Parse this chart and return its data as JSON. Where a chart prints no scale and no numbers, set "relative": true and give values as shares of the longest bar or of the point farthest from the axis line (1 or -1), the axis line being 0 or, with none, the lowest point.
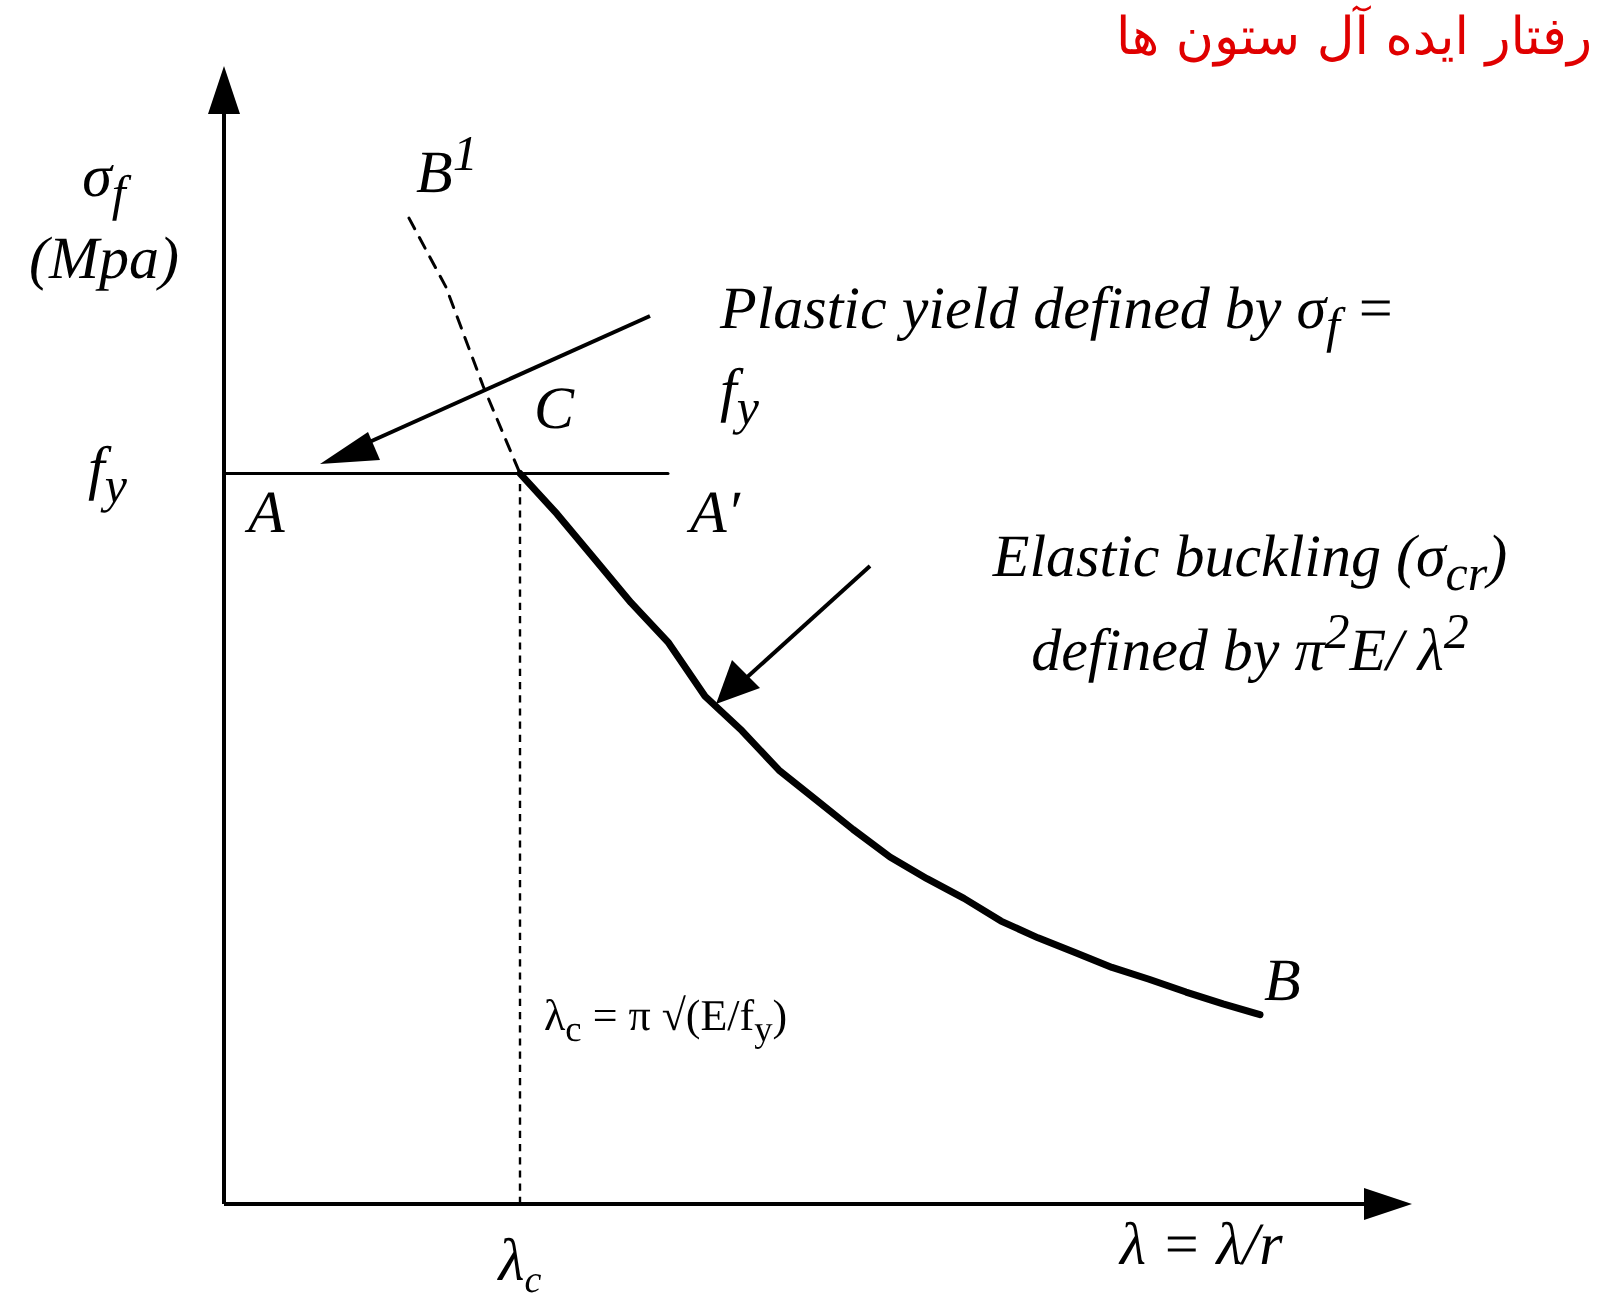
{
  "chart_data": {
    "type": "line",
    "title": "رفتار ایده آل ستون ها",
    "xlabel": "λ = λ/r",
    "ylabel": "σ$_{f}$ (Mpa)",
    "relative": true,
    "marker": "none",
    "categories": [
      null,
      null,
      null,
      null,
      null,
      null,
      null,
      null,
      null,
      null,
      null,
      null,
      null,
      null,
      null,
      null,
      null,
      null,
      null,
      null,
      null,
      null,
      null,
      null,
      null,
      null,
      null,
      null,
      null,
      null,
      null,
      null
    ],
    "series": [
      {
        "color": "#000000",
        "line_style": "dashed",
        "values": [
          null,
          null,
          null,
          null,
          null,
          1,
          0.93,
          0.83,
          0.741,
          null,
          null,
          null,
          null,
          null,
          null,
          null,
          null,
          null,
          null,
          null,
          null,
          null,
          null,
          null,
          null,
          null,
          null,
          null,
          null,
          null,
          null,
          null
        ]
      },
      {
        "color": "#000000",
        "line_style": "solid",
        "values": [
          null,
          null,
          null,
          null,
          null,
          null,
          null,
          null,
          0.741,
          0.7,
          0.655,
          0.61,
          0.57,
          0.515,
          0.48,
          0.44,
          0.41,
          0.38,
          0.352,
          0.33,
          0.31,
          0.287,
          0.27,
          0.255,
          0.24,
          0.228,
          0.215,
          0.203,
          0.192,
          null,
          null,
          null
        ]
      },
      {
        "color": "#000000",
        "line_style": "solid",
        "values": [
          0.741,
          0.741,
          0.741,
          0.741,
          0.741,
          0.741,
          0.741,
          0.741,
          0.741,
          0.741,
          0.741,
          0.741,
          0.741,
          null,
          null,
          null,
          null,
          null,
          null,
          null,
          null,
          null,
          null,
          null,
          null,
          null,
          null,
          null,
          null,
          null,
          null,
          null
        ]
      }
    ],
    "ref_lines": [
      {
        "axis": "x",
        "label": "λ$_{c}$",
        "line_style": "dashed",
        "color": "#000000"
      }
    ],
    "annotations": [
      "A",
      "A′",
      "C",
      "B$^{1}$",
      "B",
      "f$_{y}$",
      "Plastic yield defined by σ$_{f}$ = f$_{y}$",
      "Elastic buckling (σ$_{cr}$) defined by π$^{2}$E/ λ$^{2}$",
      "λ$_{c}$ = π √(E/f$_{y}$)"
    ]
  }
}
